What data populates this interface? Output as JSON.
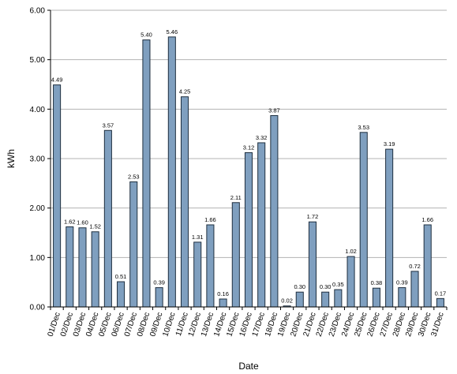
{
  "chart_data": {
    "type": "bar",
    "title": "",
    "xlabel": "Date",
    "ylabel": "kWh",
    "ylim": [
      0,
      6
    ],
    "yticks": [
      0,
      1,
      2,
      3,
      4,
      5,
      6
    ],
    "ytick_labels": [
      "0.00",
      "1.00",
      "2.00",
      "3.00",
      "4.00",
      "5.00",
      "6.00"
    ],
    "grid": true,
    "legend": "none",
    "bar_color": "#7f9fbf",
    "bar_edge": "#1f2f3f",
    "categories": [
      "01/Dec",
      "02/Dec",
      "03/Dec",
      "04/Dec",
      "05/Dec",
      "06/Dec",
      "07/Dec",
      "08/Dec",
      "09/Dec",
      "10/Dec",
      "11/Dec",
      "12/Dec",
      "13/Dec",
      "14/Dec",
      "15/Dec",
      "16/Dec",
      "17/Dec",
      "18/Dec",
      "19/Dec",
      "20/Dec",
      "21/Dec",
      "22/Dec",
      "23/Dec",
      "24/Dec",
      "25/Dec",
      "26/Dec",
      "27/Dec",
      "28/Dec",
      "29/Dec",
      "30/Dec",
      "31/Dec"
    ],
    "values": [
      4.49,
      1.62,
      1.6,
      1.52,
      3.57,
      0.51,
      2.53,
      5.4,
      0.39,
      5.46,
      4.25,
      1.31,
      1.66,
      0.16,
      2.11,
      3.12,
      3.32,
      3.87,
      0.02,
      0.3,
      1.72,
      0.3,
      0.35,
      1.02,
      3.53,
      0.38,
      3.19,
      0.39,
      0.72,
      1.66,
      0.17
    ],
    "data_labels": [
      "4.49",
      "1.62",
      "1.60",
      "1.52",
      "3.57",
      "0.51",
      "2.53",
      "5.40",
      "0.39",
      "5.46",
      "4.25",
      "1.31",
      "1.66",
      "0.16",
      "2.11",
      "3.12",
      "3.32",
      "3.87",
      "0.02",
      "0.30",
      "1.72",
      "0.30",
      "0.35",
      "1.02",
      "3.53",
      "0.38",
      "3.19",
      "0.39",
      "0.72",
      "1.66",
      "0.17"
    ]
  }
}
